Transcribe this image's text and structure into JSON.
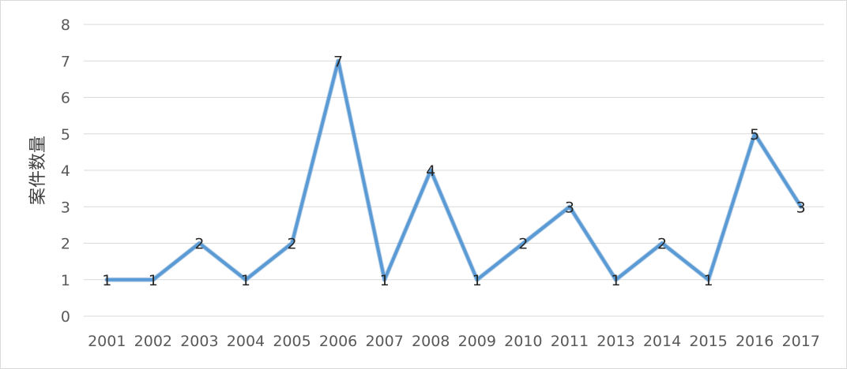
{
  "chart_data": {
    "type": "line",
    "title": "",
    "xlabel": "",
    "ylabel": "案件数量",
    "categories": [
      "2001",
      "2002",
      "2003",
      "2004",
      "2005",
      "2006",
      "2007",
      "2008",
      "2009",
      "2010",
      "2011",
      "2013",
      "2014",
      "2015",
      "2016",
      "2017"
    ],
    "series": [
      {
        "values": [
          1,
          1,
          2,
          1,
          2,
          7,
          1,
          4,
          1,
          2,
          3,
          1,
          2,
          1,
          5,
          3
        ],
        "color": "#5b9bd5"
      }
    ],
    "ylim": [
      0,
      8
    ],
    "yticks": [
      "0",
      "1",
      "2",
      "3",
      "4",
      "5",
      "6",
      "7",
      "8"
    ],
    "grid": true,
    "legend": "none",
    "data_labels": true
  }
}
